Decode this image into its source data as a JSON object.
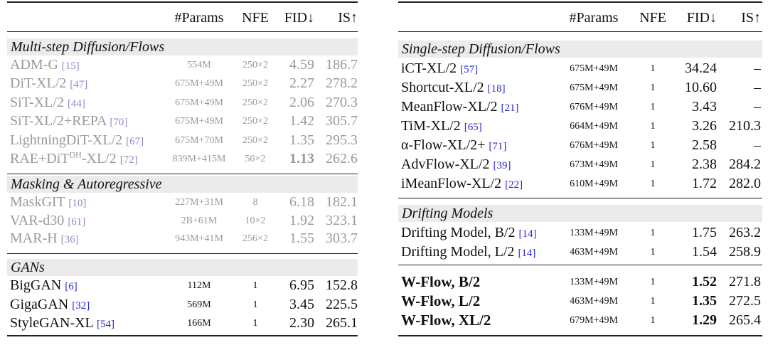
{
  "left_table": {
    "header": {
      "params": "#Params",
      "nfe": "NFE",
      "fid": "FID↓",
      "is": "IS↑"
    },
    "sections": [
      {
        "title": "Multi-step Diffusion/Flows",
        "rows": [
          {
            "name": "ADM-G",
            "cite": "[15]",
            "params": "554M",
            "nfe": "250×2",
            "fid": "4.59",
            "is": "186.7"
          },
          {
            "name": "DiT-XL/2",
            "cite": "[47]",
            "params": "675M+49M",
            "nfe": "250×2",
            "fid": "2.27",
            "is": "278.2"
          },
          {
            "name": "SiT-XL/2",
            "cite": "[44]",
            "params": "675M+49M",
            "nfe": "250×2",
            "fid": "2.06",
            "is": "270.3"
          },
          {
            "name": "SiT-XL/2+REPA",
            "cite": "[70]",
            "params": "675M+49M",
            "nfe": "250×2",
            "fid": "1.42",
            "is": "305.7"
          },
          {
            "name": "LightningDiT-XL/2",
            "cite": "[67]",
            "params": "675M+70M",
            "nfe": "250×2",
            "fid": "1.35",
            "is": "295.3"
          },
          {
            "name_pre": "RAE+DiT",
            "name_sup": "DH",
            "name_post": "-XL/2",
            "cite": "[72]",
            "params": "839M+415M",
            "nfe": "50×2",
            "fid": "1.13",
            "is": "262.6"
          }
        ]
      },
      {
        "title": "Masking & Autoregressive",
        "rows": [
          {
            "name": "MaskGIT",
            "cite": "[10]",
            "params": "227M+31M",
            "nfe": "8",
            "fid": "6.18",
            "is": "182.1"
          },
          {
            "name": "VAR-d30",
            "cite": "[61]",
            "params": "2B+61M",
            "nfe": "10×2",
            "fid": "1.92",
            "is": "323.1"
          },
          {
            "name": "MAR-H",
            "cite": "[36]",
            "params": "943M+41M",
            "nfe": "256×2",
            "fid": "1.55",
            "is": "303.7"
          }
        ]
      },
      {
        "title": "GANs",
        "rows": [
          {
            "name": "BigGAN",
            "cite": "[6]",
            "params": "112M",
            "nfe": "1",
            "fid": "6.95",
            "is": "152.8"
          },
          {
            "name": "GigaGAN",
            "cite": "[32]",
            "params": "569M",
            "nfe": "1",
            "fid": "3.45",
            "is": "225.5"
          },
          {
            "name": "StyleGAN-XL",
            "cite": "[54]",
            "params": "166M",
            "nfe": "1",
            "fid": "2.30",
            "is": "265.1"
          }
        ]
      }
    ]
  },
  "right_table": {
    "header": {
      "params": "#Params",
      "nfe": "NFE",
      "fid": "FID↓",
      "is": "IS↑"
    },
    "sections": [
      {
        "title": "Single-step Diffusion/Flows",
        "rows": [
          {
            "name": "iCT-XL/2",
            "cite": "[57]",
            "params": "675M+49M",
            "nfe": "1",
            "fid": "34.24",
            "is": "–"
          },
          {
            "name": "Shortcut-XL/2",
            "cite": "[18]",
            "params": "675M+49M",
            "nfe": "1",
            "fid": "10.60",
            "is": "–"
          },
          {
            "name": "MeanFlow-XL/2",
            "cite": "[21]",
            "params": "676M+49M",
            "nfe": "1",
            "fid": "3.43",
            "is": "–"
          },
          {
            "name": "TiM-XL/2",
            "cite": "[65]",
            "params": "664M+49M",
            "nfe": "1",
            "fid": "3.26",
            "is": "210.3"
          },
          {
            "name": "α-Flow-XL/2+",
            "cite": "[71]",
            "params": "676M+49M",
            "nfe": "1",
            "fid": "2.58",
            "is": "–"
          },
          {
            "name": "AdvFlow-XL/2",
            "cite": "[39]",
            "params": "673M+49M",
            "nfe": "1",
            "fid": "2.38",
            "is": "284.2"
          },
          {
            "name": "iMeanFlow-XL/2",
            "cite": "[22]",
            "params": "610M+49M",
            "nfe": "1",
            "fid": "1.72",
            "is": "282.0"
          }
        ]
      },
      {
        "title": "Drifting Models",
        "rows": [
          {
            "name": "Drifting Model, B/2",
            "cite": "[14]",
            "params": "133M+49M",
            "nfe": "1",
            "fid": "1.75",
            "is": "263.2"
          },
          {
            "name": "Drifting Model, L/2",
            "cite": "[14]",
            "params": "463M+49M",
            "nfe": "1",
            "fid": "1.54",
            "is": "258.9"
          }
        ]
      }
    ],
    "ours": [
      {
        "name": "W-Flow, B/2",
        "params": "133M+49M",
        "nfe": "1",
        "fid": "1.52",
        "is": "271.8"
      },
      {
        "name": "W-Flow, L/2",
        "params": "463M+49M",
        "nfe": "1",
        "fid": "1.35",
        "is": "272.5"
      },
      {
        "name": "W-Flow, XL/2",
        "params": "679M+49M",
        "nfe": "1",
        "fid": "1.29",
        "is": "265.4"
      }
    ]
  }
}
